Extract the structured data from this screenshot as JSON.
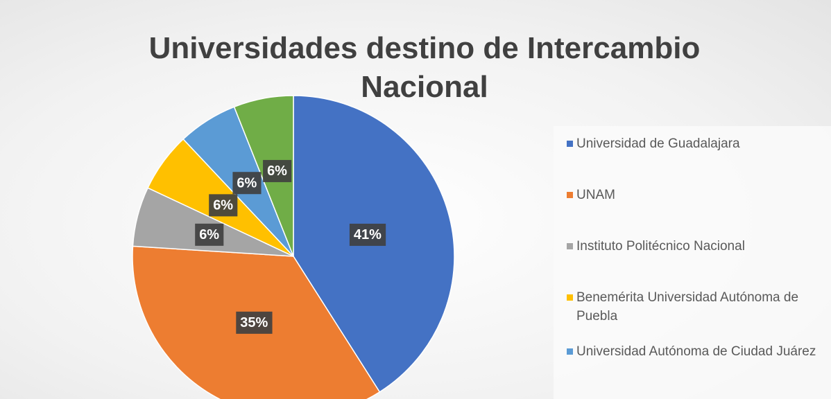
{
  "chart_data": {
    "type": "pie",
    "title": "Universidades destino de Intercambio Nacional",
    "categories": [
      "Universidad de Guadalajara",
      "UNAM",
      "Instituto Politécnico Nacional",
      "Benemérita Universidad Autónoma de Puebla",
      "Universidad Autónoma de Ciudad Juárez",
      null
    ],
    "values": [
      41,
      35,
      6,
      6,
      6,
      6
    ],
    "value_labels": [
      "41%",
      "35%",
      "6%",
      "6%",
      "6%",
      "6%"
    ],
    "colors": [
      "#4472c4",
      "#ed7d31",
      "#a5a5a5",
      "#ffc000",
      "#5b9bd5",
      "#70ad47"
    ],
    "legend": "right"
  }
}
